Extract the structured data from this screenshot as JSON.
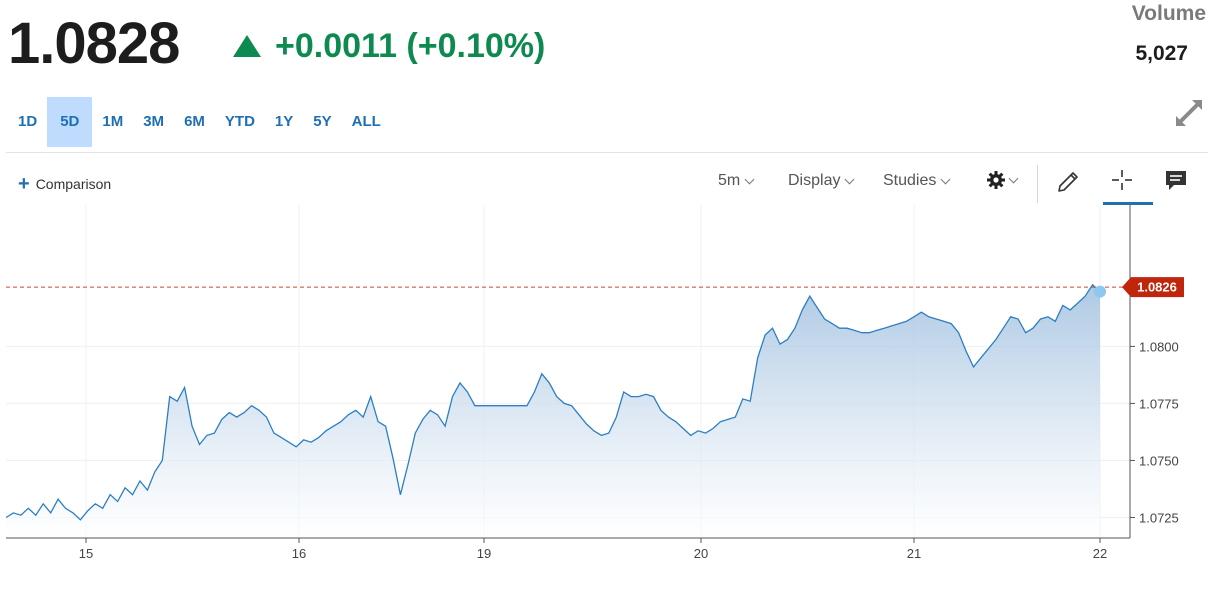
{
  "quote": {
    "price": "1.0828",
    "change": "+0.0011 (+0.10%)",
    "volume_label": "Volume",
    "volume_value": "5,027"
  },
  "ranges": [
    "1D",
    "5D",
    "1M",
    "3M",
    "6M",
    "YTD",
    "1Y",
    "5Y",
    "ALL"
  ],
  "active_range": "5D",
  "toolbar": {
    "comparison": "Comparison",
    "interval": "5m",
    "display": "Display",
    "studies": "Studies"
  },
  "chart_data": {
    "type": "area",
    "x_ticks": [
      "15",
      "16",
      "19",
      "20",
      "21",
      "22"
    ],
    "y_ticks": [
      "1.0725",
      "1.0750",
      "1.0775",
      "1.0800"
    ],
    "ylim": [
      1.0716,
      1.0862
    ],
    "last_price_label": "1.0826",
    "last_price": 1.0826,
    "series": [
      {
        "values": [
          1.0725,
          1.0727,
          1.0726,
          1.0729,
          1.0726,
          1.0731,
          1.0727,
          1.0733,
          1.0729,
          1.0727,
          1.0724,
          1.0728,
          1.0731,
          1.0729,
          1.0735,
          1.0732,
          1.0738,
          1.0735,
          1.0741,
          1.0737,
          1.0745,
          1.075,
          1.0778,
          1.0776,
          1.0782,
          1.0765,
          1.0757,
          1.0761,
          1.0762,
          1.0768,
          1.0771,
          1.0769,
          1.0771,
          1.0774,
          1.0772,
          1.0769,
          1.0762,
          1.076,
          1.0758,
          1.0756,
          1.0759,
          1.0758,
          1.076,
          1.0763,
          1.0765,
          1.0767,
          1.077,
          1.0772,
          1.0769,
          1.0778,
          1.0767,
          1.0765,
          1.0751,
          1.0735,
          1.0748,
          1.0762,
          1.0768,
          1.0772,
          1.077,
          1.0765,
          1.0778,
          1.0784,
          1.078,
          1.0774,
          1.0774,
          1.0774,
          1.0774,
          1.0774,
          1.0774,
          1.0774,
          1.0774,
          1.078,
          1.0788,
          1.0784,
          1.0778,
          1.0775,
          1.0774,
          1.077,
          1.0766,
          1.0763,
          1.0761,
          1.0762,
          1.0769,
          1.078,
          1.0778,
          1.0778,
          1.0779,
          1.0778,
          1.0772,
          1.0769,
          1.0767,
          1.0764,
          1.0761,
          1.0763,
          1.0762,
          1.0764,
          1.0767,
          1.0768,
          1.0769,
          1.0777,
          1.0776,
          1.0795,
          1.0805,
          1.0808,
          1.0801,
          1.0803,
          1.0808,
          1.0816,
          1.0822,
          1.0817,
          1.0812,
          1.081,
          1.0808,
          1.0808,
          1.0807,
          1.0806,
          1.0806,
          1.0807,
          1.0808,
          1.0809,
          1.081,
          1.0811,
          1.0813,
          1.0815,
          1.0813,
          1.0812,
          1.0811,
          1.081,
          1.0806,
          1.0798,
          1.0791,
          1.0795,
          1.0799,
          1.0803,
          1.0808,
          1.0813,
          1.0812,
          1.0806,
          1.0808,
          1.0812,
          1.0813,
          1.0811,
          1.0818,
          1.0816,
          1.0819,
          1.0822,
          1.0827,
          1.0824
        ]
      }
    ]
  },
  "colors": {
    "up": "#0d8a4f",
    "accent": "#1f6fb5",
    "line": "#2c7fc3",
    "last_price_tag": "#c0260c",
    "range_active_bg": "#bfdcff"
  },
  "icons": [
    "expand-icon",
    "gear-icon",
    "pencil-icon",
    "crosshair-icon",
    "comment-icon"
  ]
}
